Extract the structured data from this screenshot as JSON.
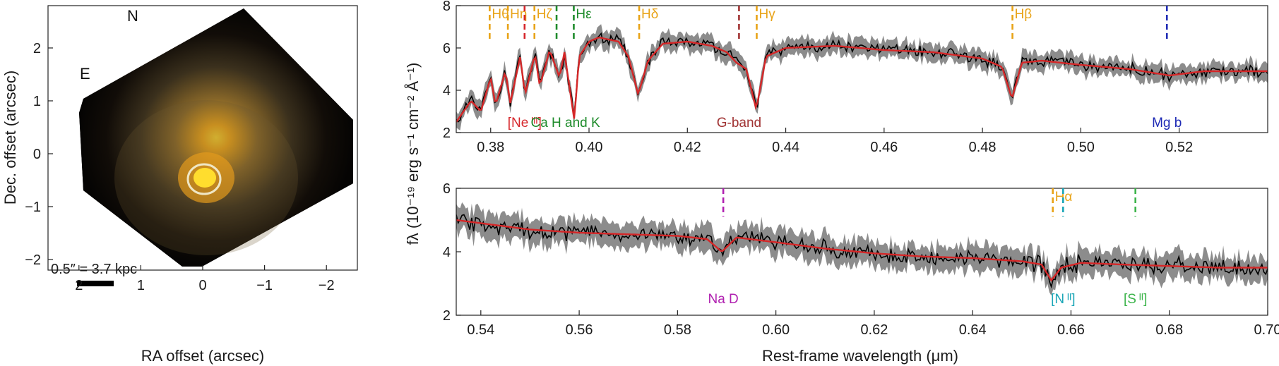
{
  "chart_data": [
    {
      "type": "image",
      "xlabel": "RA offset (arcsec)",
      "ylabel": "Dec. offset (arcsec)",
      "xlim": [
        2.5,
        -2.5
      ],
      "ylim": [
        -2.2,
        2.8
      ],
      "xticks": [
        "2",
        "1",
        "0",
        "−1",
        "−2"
      ],
      "xtick_values": [
        2,
        1,
        0,
        -1,
        -2
      ],
      "yticks": [
        "2",
        "1",
        "0",
        "−1",
        "−2"
      ],
      "ytick_values": [
        2,
        1,
        0,
        -1,
        -2
      ],
      "compass": {
        "north": "N",
        "east": "E"
      },
      "scale_bar_label": "0.5″ = 3.7 kpc",
      "aperture_center": [
        0,
        0
      ]
    },
    {
      "type": "line",
      "panel": "top",
      "ylabel": "fλ (10⁻¹⁹ erg s⁻¹ cm⁻² Å⁻¹)",
      "xlim": [
        0.373,
        0.538
      ],
      "ylim": [
        2,
        8
      ],
      "xticks": [
        "0.38",
        "0.40",
        "0.42",
        "0.44",
        "0.46",
        "0.48",
        "0.50",
        "0.52"
      ],
      "xtick_values": [
        0.38,
        0.4,
        0.42,
        0.44,
        0.46,
        0.48,
        0.5,
        0.52
      ],
      "yticks": [
        "2",
        "4",
        "6",
        "8"
      ],
      "ytick_values": [
        2,
        4,
        6,
        8
      ],
      "series": [
        {
          "x": [
            0.373,
            0.376,
            0.378,
            0.38,
            0.381,
            0.383,
            0.384,
            0.386,
            0.387,
            0.389,
            0.39,
            0.392,
            0.394,
            0.395,
            0.397,
            0.398,
            0.4,
            0.402,
            0.404,
            0.406,
            0.408,
            0.41,
            0.412,
            0.415,
            0.42,
            0.425,
            0.428,
            0.43,
            0.432,
            0.434,
            0.436,
            0.44,
            0.45,
            0.46,
            0.47,
            0.48,
            0.484,
            0.486,
            0.488,
            0.492,
            0.5,
            0.51,
            0.518,
            0.525,
            0.538
          ],
          "y": [
            2.5,
            3.5,
            3.0,
            4.6,
            3.3,
            4.9,
            3.4,
            5.6,
            3.8,
            5.7,
            4.2,
            5.9,
            4.6,
            5.8,
            2.6,
            5.6,
            6.3,
            6.5,
            6.4,
            6.3,
            5.6,
            3.8,
            5.4,
            6.2,
            6.3,
            6.1,
            5.8,
            5.3,
            5.0,
            3.1,
            5.6,
            6.0,
            6.1,
            5.9,
            5.8,
            5.5,
            5.1,
            3.6,
            5.3,
            5.4,
            5.2,
            5.0,
            4.7,
            4.9,
            4.9
          ]
        }
      ],
      "line_markers": [
        {
          "label": "Hθ",
          "x": 0.3798,
          "color": "#e8a317",
          "position": "top"
        },
        {
          "label": "Hη",
          "x": 0.3835,
          "color": "#e8a317",
          "position": "top"
        },
        {
          "label": "",
          "x": 0.3869,
          "color": "#d6262b",
          "position": "top"
        },
        {
          "label": "Hζ",
          "x": 0.3889,
          "color": "#e8a317",
          "position": "top"
        },
        {
          "label": "",
          "x": 0.3934,
          "color": "#1e8b2b",
          "position": "top"
        },
        {
          "label": "Hε",
          "x": 0.3969,
          "color": "#1e8b2b",
          "position": "top"
        },
        {
          "label": "Hδ",
          "x": 0.4102,
          "color": "#e8a317",
          "position": "top"
        },
        {
          "label": "",
          "x": 0.4305,
          "color": "#a03232",
          "position": "top"
        },
        {
          "label": "Hγ",
          "x": 0.4341,
          "color": "#e8a317",
          "position": "top"
        },
        {
          "label": "Hβ",
          "x": 0.4861,
          "color": "#e8a317",
          "position": "top"
        },
        {
          "label": "",
          "x": 0.5175,
          "color": "#1f2bb5",
          "position": "top"
        }
      ],
      "bottom_labels": [
        {
          "label": "[Ne ᴵᴵᴵ]",
          "x": 0.3869,
          "color": "#d6262b"
        },
        {
          "label": "Ca H and K",
          "x": 0.3952,
          "color": "#1e8b2b"
        },
        {
          "label": "G-band",
          "x": 0.4305,
          "color": "#a03232"
        },
        {
          "label": "Mg b",
          "x": 0.5175,
          "color": "#1f2bb5"
        }
      ]
    },
    {
      "type": "line",
      "panel": "bottom",
      "xlabel": "Rest-frame wavelength (μm)",
      "xlim": [
        0.535,
        0.7
      ],
      "ylim": [
        2,
        6
      ],
      "xticks": [
        "0.54",
        "0.56",
        "0.58",
        "0.60",
        "0.62",
        "0.64",
        "0.66",
        "0.68",
        "0.70"
      ],
      "xtick_values": [
        0.54,
        0.56,
        0.58,
        0.6,
        0.62,
        0.64,
        0.66,
        0.68,
        0.7
      ],
      "yticks": [
        "2",
        "4",
        "6"
      ],
      "ytick_values": [
        2,
        4,
        6
      ],
      "series": [
        {
          "x": [
            0.535,
            0.54,
            0.55,
            0.56,
            0.57,
            0.58,
            0.586,
            0.589,
            0.592,
            0.6,
            0.61,
            0.62,
            0.63,
            0.64,
            0.65,
            0.654,
            0.656,
            0.658,
            0.662,
            0.67,
            0.68,
            0.69,
            0.7
          ],
          "y": [
            5.0,
            4.9,
            4.7,
            4.6,
            4.55,
            4.5,
            4.4,
            4.0,
            4.45,
            4.3,
            4.1,
            3.95,
            3.85,
            3.8,
            3.7,
            3.6,
            3.1,
            3.5,
            3.65,
            3.6,
            3.55,
            3.5,
            3.5
          ]
        }
      ],
      "line_markers": [
        {
          "label": "",
          "x": 0.5893,
          "color": "#b020b0",
          "position": "top"
        },
        {
          "label": "Hα",
          "x": 0.6563,
          "color": "#e8a317",
          "position": "top"
        },
        {
          "label": "",
          "x": 0.6584,
          "color": "#1aa6b7",
          "position": "top"
        },
        {
          "label": "",
          "x": 0.6731,
          "color": "#3cb44b",
          "position": "top"
        }
      ],
      "bottom_labels": [
        {
          "label": "Na D",
          "x": 0.5893,
          "color": "#b020b0"
        },
        {
          "label": "[N ᴵᴵ]",
          "x": 0.6584,
          "color": "#1aa6b7"
        },
        {
          "label": "[S ᴵᴵ]",
          "x": 0.6731,
          "color": "#3cb44b"
        }
      ]
    }
  ]
}
